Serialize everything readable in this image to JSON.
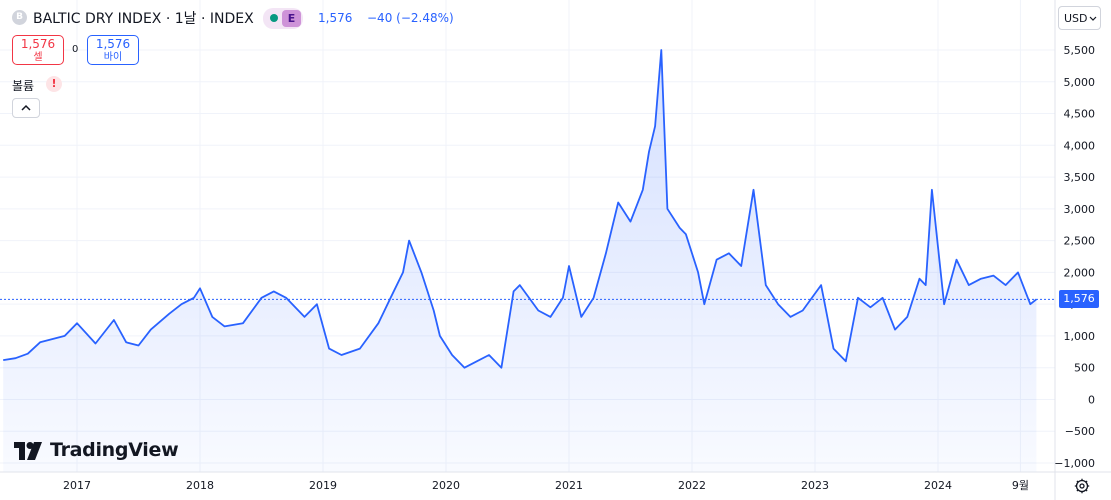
{
  "header": {
    "symbol_badge": "B",
    "title": "BALTIC DRY INDEX · 1날 · INDEX",
    "event_badge": "E",
    "price": "1,576",
    "change": "−40 (−2.48%)"
  },
  "trade": {
    "sell_price": "1,576",
    "sell_label": "셀",
    "spread": "0",
    "buy_price": "1,576",
    "buy_label": "바이"
  },
  "volume": {
    "label": "볼륨",
    "warning": "!"
  },
  "currency": "USD",
  "price_tag": "1,576",
  "branding": {
    "logo_text": "TradingView"
  },
  "colors": {
    "line": "#2962ff",
    "grid": "#f0f3fa",
    "sell": "#f23645",
    "buy": "#2962ff",
    "positive_dot": "#089981"
  },
  "icons": [
    "chevron-up-icon",
    "chevron-down-icon",
    "gear-icon",
    "tradingview-logo-icon",
    "warning-icon"
  ],
  "chart_data": {
    "type": "area",
    "title": "BALTIC DRY INDEX",
    "ylim": [
      -1000,
      5800
    ],
    "xlim": [
      2016.4,
      2024.85
    ],
    "grid": true,
    "y_ticks": [
      5500,
      5000,
      4500,
      4000,
      3500,
      3000,
      2500,
      2000,
      1500,
      1000,
      500,
      0,
      -500,
      -1000
    ],
    "y_tick_labels": [
      "5,500",
      "5,000",
      "4,500",
      "4,000",
      "3,500",
      "3,000",
      "2,500",
      "2,000",
      "1,500",
      "1,000",
      "500",
      "0",
      "−500",
      "−1,000"
    ],
    "x_ticks": [
      2017,
      2018,
      2019,
      2020,
      2021,
      2022,
      2023,
      2024,
      2024.67
    ],
    "x_tick_labels": [
      "2017",
      "2018",
      "2019",
      "2020",
      "2021",
      "2022",
      "2023",
      "2024",
      "9월"
    ],
    "last_value": 1576,
    "x": [
      2016.4,
      2016.5,
      2016.6,
      2016.7,
      2016.9,
      2017.0,
      2017.15,
      2017.3,
      2017.4,
      2017.5,
      2017.6,
      2017.75,
      2017.85,
      2017.95,
      2018.0,
      2018.1,
      2018.2,
      2018.35,
      2018.5,
      2018.6,
      2018.7,
      2018.85,
      2018.95,
      2019.05,
      2019.15,
      2019.3,
      2019.45,
      2019.55,
      2019.65,
      2019.7,
      2019.8,
      2019.9,
      2019.95,
      2020.05,
      2020.15,
      2020.25,
      2020.35,
      2020.45,
      2020.55,
      2020.6,
      2020.75,
      2020.85,
      2020.95,
      2021.0,
      2021.1,
      2021.2,
      2021.3,
      2021.4,
      2021.5,
      2021.6,
      2021.65,
      2021.7,
      2021.75,
      2021.8,
      2021.9,
      2021.95,
      2022.05,
      2022.1,
      2022.2,
      2022.3,
      2022.4,
      2022.5,
      2022.6,
      2022.7,
      2022.8,
      2022.9,
      2023.05,
      2023.15,
      2023.25,
      2023.35,
      2023.45,
      2023.55,
      2023.65,
      2023.75,
      2023.85,
      2023.9,
      2023.95,
      2024.05,
      2024.15,
      2024.25,
      2024.35,
      2024.45,
      2024.55,
      2024.65,
      2024.75,
      2024.8
    ],
    "y": [
      620,
      650,
      720,
      900,
      1000,
      1200,
      880,
      1250,
      900,
      850,
      1100,
      1350,
      1500,
      1600,
      1750,
      1300,
      1150,
      1200,
      1600,
      1700,
      1600,
      1300,
      1500,
      800,
      700,
      800,
      1200,
      1600,
      2000,
      2500,
      2000,
      1400,
      1000,
      700,
      500,
      600,
      700,
      500,
      1700,
      1800,
      1400,
      1300,
      1600,
      2100,
      1300,
      1600,
      2300,
      3100,
      2800,
      3300,
      3900,
      4300,
      5500,
      3000,
      2700,
      2600,
      2000,
      1500,
      2200,
      2300,
      2100,
      3300,
      1800,
      1500,
      1300,
      1400,
      1800,
      800,
      600,
      1600,
      1450,
      1600,
      1100,
      1300,
      1900,
      1800,
      3300,
      1500,
      2200,
      1800,
      1900,
      1950,
      1800,
      2000,
      1500,
      1576
    ]
  }
}
